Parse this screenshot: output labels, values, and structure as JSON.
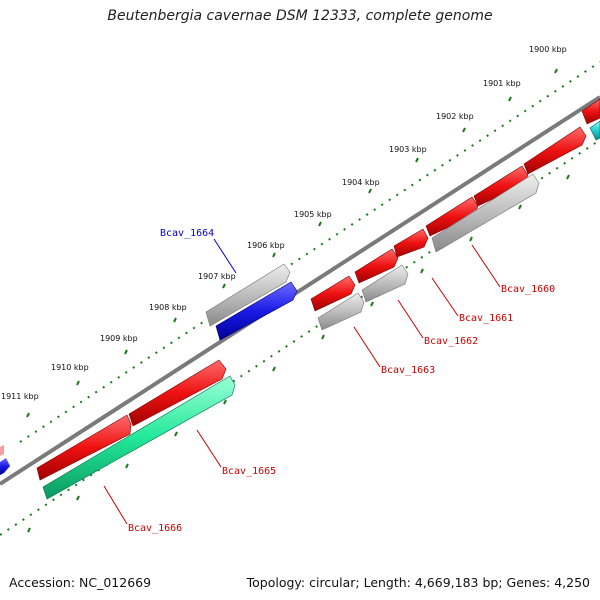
{
  "title": "Beutenbergia cavernae DSM 12333, complete genome",
  "footer": {
    "accession": "Accession: NC_012669",
    "topology": "Topology: circular; Length: 4,669,183 bp; Genes: 4,250"
  },
  "ticks": [
    "1900 kbp",
    "1901 kbp",
    "1902 kbp",
    "1903 kbp",
    "1904 kbp",
    "1905 kbp",
    "1906 kbp",
    "1907 kbp",
    "1908 kbp",
    "1909 kbp",
    "1910 kbp",
    "1911 kbp"
  ],
  "colors": {
    "cds_forward": "#ee1111",
    "cds_reverse": "#ee1111",
    "gray_feature": "#b8b8b8",
    "blue_feature": "#1a1ae6",
    "green_feature": "#22e89a",
    "cyan_feature": "#22cccc",
    "backbone": "#888888",
    "tick": "#1a7a1a",
    "label_red": "#cc0000",
    "label_blue": "#0000cc"
  },
  "genes": [
    {
      "name": "Bcav_1660",
      "color": "label_red"
    },
    {
      "name": "Bcav_1661",
      "color": "label_red"
    },
    {
      "name": "Bcav_1662",
      "color": "label_red"
    },
    {
      "name": "Bcav_1663",
      "color": "label_red"
    },
    {
      "name": "Bcav_1664",
      "color": "label_blue"
    },
    {
      "name": "Bcav_1665",
      "color": "label_red"
    },
    {
      "name": "Bcav_1666",
      "color": "label_red"
    }
  ]
}
